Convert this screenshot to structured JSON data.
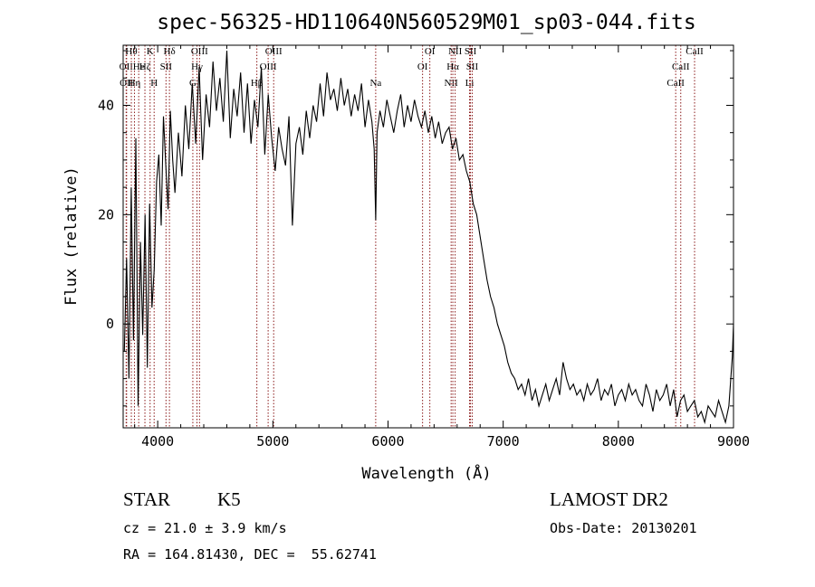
{
  "chart_data": {
    "type": "line",
    "title": "spec-56325-HD110640N560529M01_sp03-044.fits",
    "xlabel": "Wavelength (Å)",
    "ylabel": "Flux (relative)",
    "xlim": [
      3700,
      9000
    ],
    "ylim": [
      -19,
      51
    ],
    "xticks": [
      4000,
      5000,
      6000,
      7000,
      8000,
      9000
    ],
    "yticks": [
      0,
      20,
      40
    ],
    "grid": false,
    "line_color": "#000000",
    "marker_color": "#8b1a1a",
    "series": [
      {
        "x": [
          3710,
          3730,
          3750,
          3770,
          3790,
          3810,
          3830,
          3850,
          3870,
          3890,
          3910,
          3930,
          3950,
          3970,
          3990,
          4010,
          4030,
          4050,
          4070,
          4090,
          4110,
          4130,
          4150,
          4180,
          4210,
          4240,
          4270,
          4300,
          4330,
          4360,
          4390,
          4420,
          4450,
          4480,
          4510,
          4540,
          4570,
          4600,
          4630,
          4660,
          4690,
          4720,
          4750,
          4780,
          4810,
          4840,
          4870,
          4900,
          4930,
          4960,
          4990,
          5020,
          5050,
          5080,
          5110,
          5140,
          5170,
          5200,
          5230,
          5260,
          5290,
          5320,
          5350,
          5380,
          5410,
          5440,
          5470,
          5500,
          5530,
          5560,
          5590,
          5620,
          5650,
          5680,
          5710,
          5740,
          5770,
          5800,
          5830,
          5860,
          5880,
          5893,
          5905,
          5930,
          5960,
          5990,
          6020,
          6050,
          6080,
          6110,
          6140,
          6170,
          6200,
          6230,
          6260,
          6290,
          6320,
          6350,
          6380,
          6410,
          6440,
          6470,
          6500,
          6530,
          6560,
          6590,
          6620,
          6650,
          6680,
          6710,
          6740,
          6770,
          6800,
          6830,
          6860,
          6890,
          6920,
          6950,
          6980,
          7010,
          7040,
          7070,
          7100,
          7130,
          7160,
          7190,
          7220,
          7250,
          7280,
          7310,
          7340,
          7370,
          7400,
          7430,
          7460,
          7490,
          7520,
          7550,
          7580,
          7610,
          7640,
          7670,
          7700,
          7730,
          7760,
          7790,
          7820,
          7850,
          7880,
          7910,
          7940,
          7970,
          8000,
          8030,
          8060,
          8090,
          8120,
          8150,
          8180,
          8210,
          8240,
          8270,
          8300,
          8330,
          8360,
          8390,
          8420,
          8450,
          8480,
          8510,
          8540,
          8570,
          8600,
          8630,
          8660,
          8690,
          8720,
          8750,
          8780,
          8810,
          8840,
          8870,
          8900,
          8930,
          8960,
          8990,
          9000
        ],
        "y": [
          -5,
          12,
          -10,
          25,
          -3,
          34,
          -15,
          15,
          -2,
          20,
          -8,
          22,
          3,
          10,
          26,
          31,
          18,
          38,
          29,
          21,
          39,
          30,
          24,
          35,
          27,
          40,
          32,
          44,
          33,
          47,
          30,
          42,
          36,
          48,
          39,
          45,
          37,
          50,
          34,
          43,
          38,
          46,
          35,
          44,
          33,
          41,
          36,
          47,
          31,
          42,
          34,
          28,
          36,
          32,
          29,
          38,
          18,
          33,
          36,
          31,
          39,
          34,
          40,
          37,
          44,
          38,
          46,
          41,
          43,
          39,
          45,
          40,
          43,
          38,
          42,
          39,
          44,
          36,
          41,
          37,
          32,
          19,
          35,
          39,
          36,
          41,
          38,
          35,
          39,
          42,
          36,
          40,
          37,
          41,
          38,
          36,
          39,
          35,
          38,
          34,
          37,
          33,
          35,
          36,
          32,
          34,
          30,
          31,
          28,
          26,
          22,
          20,
          16,
          12,
          8,
          5,
          3,
          0,
          -2,
          -4,
          -7,
          -9,
          -10,
          -12,
          -11,
          -13,
          -10,
          -14,
          -12,
          -15,
          -13,
          -11,
          -14,
          -12,
          -10,
          -13,
          -7,
          -10,
          -12,
          -11,
          -13,
          -12,
          -14,
          -11,
          -13,
          -12,
          -10,
          -14,
          -12,
          -13,
          -11,
          -15,
          -13,
          -12,
          -14,
          -11,
          -13,
          -12,
          -14,
          -15,
          -11,
          -13,
          -16,
          -12,
          -14,
          -13,
          -11,
          -15,
          -12,
          -17,
          -14,
          -13,
          -16,
          -15,
          -14,
          -17,
          -16,
          -18,
          -15,
          -16,
          -17,
          -14,
          -16,
          -18,
          -15,
          -6,
          0
        ]
      }
    ],
    "lines": [
      {
        "wl": 3726,
        "label": "OII",
        "row": 1
      },
      {
        "wl": 3730,
        "label": "OII",
        "row": 2
      },
      {
        "wl": 3771,
        "label": "Hθ",
        "row": 0
      },
      {
        "wl": 3798,
        "label": "Hη",
        "row": 2
      },
      {
        "wl": 3835,
        "label": "He",
        "row": 1
      },
      {
        "wl": 3889,
        "label": "Hζ",
        "row": 1
      },
      {
        "wl": 3934,
        "label": "K",
        "row": 0
      },
      {
        "wl": 3969,
        "label": "H",
        "row": 2
      },
      {
        "wl": 4072,
        "label": "SII",
        "row": 1
      },
      {
        "wl": 4102,
        "label": "Hδ",
        "row": 0
      },
      {
        "wl": 4305,
        "label": "G",
        "row": 2
      },
      {
        "wl": 4341,
        "label": "Hγ",
        "row": 1
      },
      {
        "wl": 4363,
        "label": "OIII",
        "row": 0
      },
      {
        "wl": 4861,
        "label": "Hβ",
        "row": 2
      },
      {
        "wl": 4959,
        "label": "OIII",
        "row": 1
      },
      {
        "wl": 5007,
        "label": "OIII",
        "row": 0
      },
      {
        "wl": 5893,
        "label": "Na",
        "row": 2
      },
      {
        "wl": 6300,
        "label": "OI",
        "row": 1
      },
      {
        "wl": 6363,
        "label": "OI",
        "row": 0
      },
      {
        "wl": 6548,
        "label": "NII",
        "row": 2
      },
      {
        "wl": 6563,
        "label": "Hα",
        "row": 1
      },
      {
        "wl": 6583,
        "label": "NII",
        "row": 0
      },
      {
        "wl": 6708,
        "label": "Li",
        "row": 2
      },
      {
        "wl": 6716,
        "label": "SII",
        "row": 0
      },
      {
        "wl": 6731,
        "label": "SII",
        "row": 1
      },
      {
        "wl": 8498,
        "label": "CaII",
        "row": 2
      },
      {
        "wl": 8542,
        "label": "CaII",
        "row": 1
      },
      {
        "wl": 8662,
        "label": "CaII",
        "row": 0
      }
    ]
  },
  "info": {
    "object_class": "STAR",
    "subclass": "K5",
    "survey": "LAMOST DR2",
    "cz": "cz = 21.0 ± 3.9 km/s",
    "obs_date": "Obs-Date: 20130201",
    "coords": "RA = 164.81430, DEC =  55.62741"
  }
}
